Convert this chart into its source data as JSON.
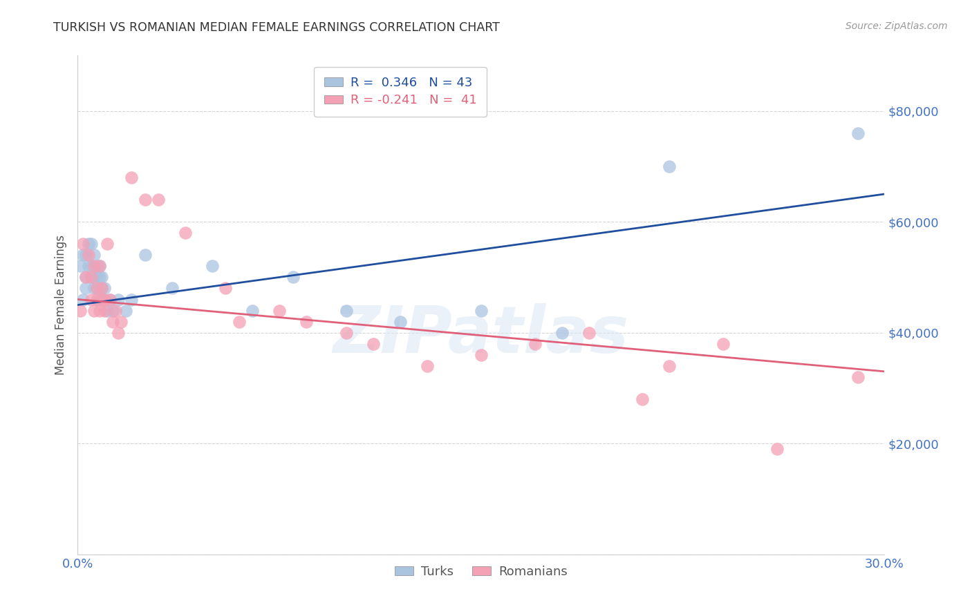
{
  "title": "TURKISH VS ROMANIAN MEDIAN FEMALE EARNINGS CORRELATION CHART",
  "source": "Source: ZipAtlas.com",
  "ylabel": "Median Female Earnings",
  "xlim": [
    0.0,
    0.3
  ],
  "ylim": [
    0,
    90000
  ],
  "yticks": [
    0,
    20000,
    40000,
    60000,
    80000
  ],
  "ytick_labels": [
    "",
    "$20,000",
    "$40,000",
    "$60,000",
    "$80,000"
  ],
  "xticks": [
    0.0,
    0.05,
    0.1,
    0.15,
    0.2,
    0.25,
    0.3
  ],
  "xtick_labels": [
    "0.0%",
    "",
    "",
    "",
    "",
    "",
    "30.0%"
  ],
  "legend_entries": [
    {
      "label": "R =  0.346   N = 43",
      "color": "#aac4e0"
    },
    {
      "label": "R = -0.241   N =  41",
      "color": "#f4a0b5"
    }
  ],
  "watermark": "ZIPatlas",
  "title_color": "#333333",
  "axis_label_color": "#4472c4",
  "turk_color": "#aac4e0",
  "romanian_color": "#f4a0b5",
  "turk_line_color": "#1f4e9e",
  "romanian_line_color": "#e0607a",
  "background_color": "#ffffff",
  "grid_color": "#cccccc",
  "turks_x": [
    0.001,
    0.002,
    0.002,
    0.003,
    0.003,
    0.003,
    0.004,
    0.004,
    0.005,
    0.005,
    0.005,
    0.006,
    0.006,
    0.006,
    0.007,
    0.007,
    0.007,
    0.008,
    0.008,
    0.008,
    0.008,
    0.009,
    0.009,
    0.009,
    0.01,
    0.01,
    0.011,
    0.012,
    0.013,
    0.015,
    0.018,
    0.02,
    0.025,
    0.035,
    0.05,
    0.065,
    0.08,
    0.1,
    0.12,
    0.15,
    0.18,
    0.22,
    0.29
  ],
  "turks_y": [
    52000,
    54000,
    46000,
    50000,
    48000,
    54000,
    52000,
    56000,
    50000,
    52000,
    56000,
    50000,
    48000,
    54000,
    52000,
    48000,
    50000,
    50000,
    48000,
    52000,
    46000,
    50000,
    48000,
    46000,
    48000,
    46000,
    44000,
    46000,
    44000,
    46000,
    44000,
    46000,
    54000,
    48000,
    52000,
    44000,
    50000,
    44000,
    42000,
    44000,
    40000,
    70000,
    76000
  ],
  "romanians_x": [
    0.001,
    0.002,
    0.003,
    0.004,
    0.005,
    0.005,
    0.006,
    0.006,
    0.007,
    0.007,
    0.008,
    0.008,
    0.009,
    0.009,
    0.01,
    0.01,
    0.011,
    0.012,
    0.013,
    0.014,
    0.015,
    0.016,
    0.02,
    0.025,
    0.03,
    0.04,
    0.055,
    0.06,
    0.075,
    0.085,
    0.1,
    0.11,
    0.13,
    0.15,
    0.17,
    0.19,
    0.21,
    0.22,
    0.24,
    0.26,
    0.29
  ],
  "romanians_y": [
    44000,
    56000,
    50000,
    54000,
    46000,
    50000,
    44000,
    52000,
    48000,
    46000,
    44000,
    52000,
    46000,
    48000,
    44000,
    46000,
    56000,
    46000,
    42000,
    44000,
    40000,
    42000,
    68000,
    64000,
    64000,
    58000,
    48000,
    42000,
    44000,
    42000,
    40000,
    38000,
    34000,
    36000,
    38000,
    40000,
    28000,
    34000,
    38000,
    19000,
    32000
  ]
}
